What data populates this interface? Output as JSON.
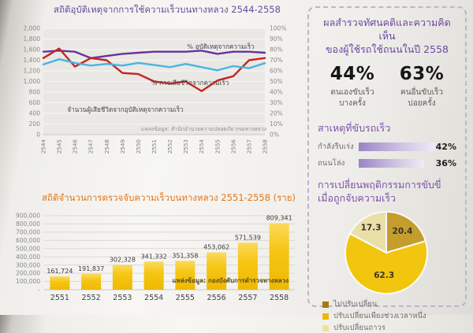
{
  "line_chart": {
    "title": "สถิติอุบัติเหตุจากการใช้ความเร็วบนทางหลวง 2544-2558",
    "source": "แหล่งข้อมูล: สำนักอำนวยความปลอดภัย กรมทางหลวง",
    "label_accident_pct": "% อุบัติเหตุจากความเร็ว",
    "label_death_pct": "% การเสียชีวิตจากความเร็ว",
    "label_death_count": "จำนวนผู้เสียชีวิตจากอุบัติเหตุจากความเร็ว"
  },
  "bar_chart": {
    "title": "สถิติจำนวนการตรวจจับความเร็วบนทางหลวง 2551-2558 (ราย)",
    "source": "แหล่งข้อมูล: กองบังคับการตำรวจทางหลวง"
  },
  "survey_panel": {
    "title_line1": "ผลสำรวจทัศนคติและความคิดเห็น",
    "title_line2": "ของผู้ใช้รถใช้ถนนในปี 2558",
    "stats": [
      {
        "value": "44%",
        "caption_line1": "ตนเองขับเร็ว",
        "caption_line2": "บางครั้ง"
      },
      {
        "value": "63%",
        "caption_line1": "คนอื่นขับเร็ว",
        "caption_line2": "บ่อยครั้ง"
      }
    ],
    "reasons": {
      "heading": "สาเหตุที่ขับรถเร็ว",
      "items": [
        {
          "label": "กำลังรีบเร่ง",
          "value": "42%",
          "pct": 42
        },
        {
          "label": "ถนนโล่ง",
          "value": "36%",
          "pct": 36
        }
      ]
    },
    "behavior": {
      "heading_line1": "การเปลี่ยนพฤติกรรมการขับขี่",
      "heading_line2": "เมื่อถูกจับความเร็ว",
      "legend": [
        {
          "label": "ไม่ปรับเปลี่ยน",
          "color": "#a9790f"
        },
        {
          "label": "ปรับเปลี่ยนเพียงช่วงเวลาหนึ่ง",
          "color": "#eeb60a"
        },
        {
          "label": "ปรับเปลี่ยนถาวร",
          "color": "#ece29b"
        }
      ]
    }
  },
  "chart_data": [
    {
      "type": "line",
      "title": "สถิติอุบัติเหตุจากการใช้ความเร็วบนทางหลวง 2544-2558",
      "x": [
        "2544",
        "2545",
        "2546",
        "2547",
        "2548",
        "2549",
        "2550",
        "2551",
        "2552",
        "2553",
        "2554",
        "2555",
        "2556",
        "2557",
        "2558"
      ],
      "left_ylim": [
        0,
        2000
      ],
      "right_ylim": [
        0,
        100
      ],
      "left_ticks": [
        "2,000",
        "1,800",
        "1,600",
        "1,400",
        "1,200",
        "1,000",
        "800",
        "600",
        "400",
        "200",
        "0"
      ],
      "right_ticks": [
        "100%",
        "90%",
        "80%",
        "70%",
        "60%",
        "50%",
        "40%",
        "30%",
        "20%",
        "10%",
        "0%"
      ],
      "series": [
        {
          "name": "% อุบัติเหตุจากความเร็ว",
          "axis": "right",
          "color": "#6633a0",
          "values": [
            78,
            79,
            78,
            72,
            74,
            76,
            77,
            78,
            78,
            78,
            79,
            76,
            78,
            78,
            77
          ]
        },
        {
          "name": "% การเสียชีวิตจากความเร็ว",
          "axis": "right",
          "color": "#c42423",
          "values": [
            72,
            81,
            64,
            72,
            70,
            58,
            57,
            50,
            48,
            50,
            41,
            51,
            55,
            70,
            72
          ]
        },
        {
          "name": "จำนวนผู้เสียชีวิตจากอุบัติเหตุจากความเร็ว",
          "axis": "left",
          "color": "#48b5e2",
          "values": [
            1320,
            1420,
            1350,
            1300,
            1330,
            1300,
            1350,
            1310,
            1270,
            1330,
            1270,
            1210,
            1290,
            1250,
            1345
          ]
        }
      ],
      "source": "แหล่งข้อมูล: สำนักอำนวยความปลอดภัย กรมทางหลวง",
      "legend_position": "inline-labels",
      "grid": true
    },
    {
      "type": "bar",
      "title": "สถิติจำนวนการตรวจจับความเร็วบนทางหลวง 2551-2558 (ราย)",
      "categories": [
        "2551",
        "2552",
        "2553",
        "2554",
        "2555",
        "2556",
        "2557",
        "2558"
      ],
      "values": [
        161724,
        191837,
        302328,
        341332,
        351358,
        453062,
        571539,
        809341
      ],
      "labels": [
        "161,724",
        "191,837",
        "302,328",
        "341,332",
        "351,358",
        "453,062",
        "571,539",
        "809,341"
      ],
      "ylim": [
        0,
        900000
      ],
      "ticks": [
        "900,000",
        "800,000",
        "700,000",
        "600,000",
        "500,000",
        "400,000",
        "300,000",
        "200,000",
        "100,000",
        "-"
      ],
      "bar_color": "#f2c20d",
      "source": "แหล่งข้อมูล: กองบังคับการตำรวจทางหลวง",
      "grid": true
    },
    {
      "type": "pie",
      "title": "การเปลี่ยนพฤติกรรมการขับขี่เมื่อถูกจับความเร็ว",
      "values": [
        20.4,
        62.3,
        17.3
      ],
      "slice_labels": [
        "20.4",
        "62.3",
        "17.3"
      ],
      "colors": [
        "#c49d2d",
        "#f2c50f",
        "#ebdfa9"
      ],
      "label_radius": [
        0.66,
        0.55,
        0.72
      ],
      "legend": [
        "ไม่ปรับเปลี่ยน",
        "ปรับเปลี่ยนเพียงช่วงเวลาหนึ่ง",
        "ปรับเปลี่ยนถาวร"
      ],
      "legend_position": "bottom-left"
    },
    {
      "type": "bar",
      "orientation": "horizontal",
      "title": "สาเหตุที่ขับรถเร็ว",
      "categories": [
        "กำลังรีบเร่ง",
        "ถนนโล่ง"
      ],
      "values": [
        42,
        36
      ],
      "labels": [
        "42%",
        "36%"
      ],
      "xlim": [
        0,
        100
      ]
    }
  ]
}
